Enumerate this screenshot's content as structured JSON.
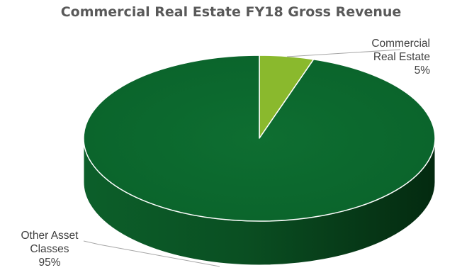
{
  "chart_data": {
    "type": "pie",
    "title": "Commercial Real Estate FY18 Gross Revenue",
    "slices": [
      {
        "label_lines": [
          "Commercial",
          "Real Estate"
        ],
        "value": 5,
        "value_text": "5%",
        "color": "#8AB92D",
        "side_color": "#5E8A1A"
      },
      {
        "label_lines": [
          "Other Asset",
          "Classes"
        ],
        "value": 95,
        "value_text": "95%",
        "color": "#0B6A2E",
        "side_color": "#063F1B"
      }
    ],
    "style": "3d",
    "legend": "none",
    "data_labels": "outside-with-leader-lines"
  }
}
